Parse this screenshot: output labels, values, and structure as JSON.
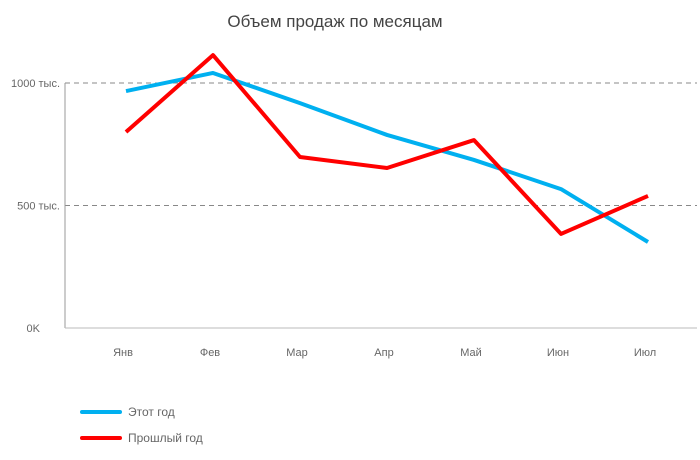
{
  "chart_data": {
    "type": "line",
    "title": "Объем продаж по месяцам",
    "categories": [
      "Янв",
      "Фев",
      "Мар",
      "Апр",
      "Май",
      "Июн",
      "Июл"
    ],
    "ylim": [
      0,
      1000
    ],
    "yticks": [
      {
        "value": 0,
        "label": "0K"
      },
      {
        "value": 500,
        "label": "500 тыс."
      },
      {
        "value": 1000,
        "label": "1000 тыс."
      }
    ],
    "grid": true,
    "legend_position": "bottom-left",
    "series": [
      {
        "name": "Этот год",
        "color": "#00B0F0",
        "values": [
          967,
          1041,
          918,
          788,
          686,
          567,
          351
        ]
      },
      {
        "name": "Прошлый год",
        "color": "#FF0000",
        "values": [
          800,
          1114,
          698,
          653,
          767,
          384,
          539
        ]
      }
    ]
  }
}
